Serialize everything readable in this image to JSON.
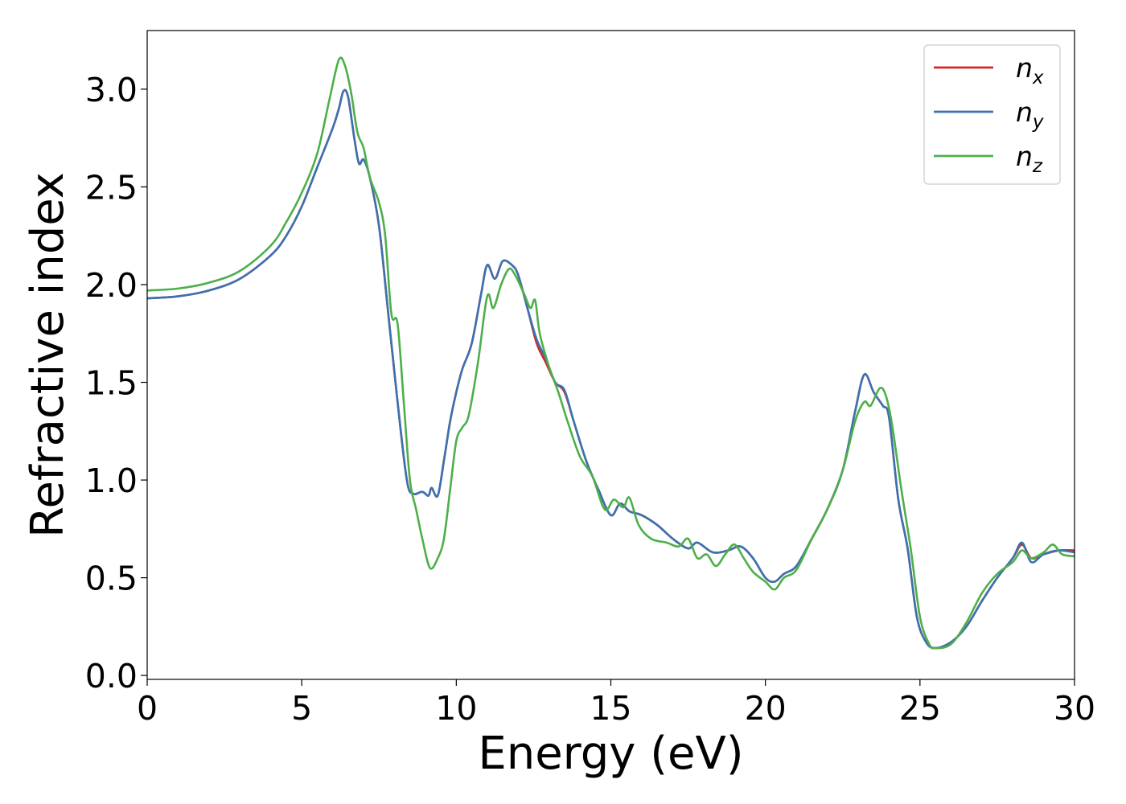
{
  "chart_data": {
    "type": "line",
    "xlabel": "Energy (eV)",
    "ylabel": "Refractive index",
    "xlim": [
      0,
      30
    ],
    "ylim": [
      -0.02,
      3.3
    ],
    "xticks": [
      "0",
      "5",
      "10",
      "15",
      "20",
      "25",
      "30"
    ],
    "yticks": [
      "0.0",
      "0.5",
      "1.0",
      "1.5",
      "2.0",
      "2.5",
      "3.0"
    ],
    "grid": false,
    "legend_position": "top-right",
    "series": [
      {
        "name": "n",
        "subscript": "x",
        "color": "#d62728",
        "points": [
          [
            0,
            1.93
          ],
          [
            1,
            1.94
          ],
          [
            2,
            1.97
          ],
          [
            3,
            2.03
          ],
          [
            4,
            2.15
          ],
          [
            4.5,
            2.25
          ],
          [
            5,
            2.4
          ],
          [
            5.5,
            2.6
          ],
          [
            6,
            2.8
          ],
          [
            6.2,
            2.9
          ],
          [
            6.35,
            2.99
          ],
          [
            6.5,
            2.96
          ],
          [
            6.7,
            2.75
          ],
          [
            6.85,
            2.62
          ],
          [
            7.0,
            2.64
          ],
          [
            7.2,
            2.55
          ],
          [
            7.5,
            2.3
          ],
          [
            7.8,
            1.85
          ],
          [
            8.1,
            1.4
          ],
          [
            8.4,
            1.0
          ],
          [
            8.6,
            0.93
          ],
          [
            8.9,
            0.94
          ],
          [
            9.1,
            0.92
          ],
          [
            9.2,
            0.96
          ],
          [
            9.4,
            0.92
          ],
          [
            9.6,
            1.1
          ],
          [
            9.8,
            1.3
          ],
          [
            10.0,
            1.45
          ],
          [
            10.2,
            1.57
          ],
          [
            10.5,
            1.7
          ],
          [
            10.8,
            1.95
          ],
          [
            11.0,
            2.1
          ],
          [
            11.25,
            2.03
          ],
          [
            11.5,
            2.12
          ],
          [
            11.8,
            2.1
          ],
          [
            12.0,
            2.05
          ],
          [
            12.3,
            1.88
          ],
          [
            12.6,
            1.7
          ],
          [
            12.9,
            1.6
          ],
          [
            13.2,
            1.5
          ],
          [
            13.5,
            1.45
          ],
          [
            13.8,
            1.3
          ],
          [
            14.2,
            1.1
          ],
          [
            14.6,
            0.95
          ],
          [
            15.0,
            0.82
          ],
          [
            15.3,
            0.88
          ],
          [
            15.6,
            0.84
          ],
          [
            16.0,
            0.82
          ],
          [
            16.5,
            0.77
          ],
          [
            17.0,
            0.7
          ],
          [
            17.5,
            0.65
          ],
          [
            17.8,
            0.68
          ],
          [
            18.3,
            0.63
          ],
          [
            18.8,
            0.64
          ],
          [
            19.2,
            0.66
          ],
          [
            19.6,
            0.6
          ],
          [
            20.0,
            0.5
          ],
          [
            20.3,
            0.48
          ],
          [
            20.6,
            0.52
          ],
          [
            21.0,
            0.56
          ],
          [
            21.5,
            0.7
          ],
          [
            22.0,
            0.85
          ],
          [
            22.5,
            1.05
          ],
          [
            22.9,
            1.35
          ],
          [
            23.2,
            1.54
          ],
          [
            23.5,
            1.45
          ],
          [
            23.8,
            1.38
          ],
          [
            24.0,
            1.32
          ],
          [
            24.3,
            0.9
          ],
          [
            24.6,
            0.65
          ],
          [
            24.9,
            0.3
          ],
          [
            25.2,
            0.17
          ],
          [
            25.5,
            0.14
          ],
          [
            26.0,
            0.17
          ],
          [
            26.5,
            0.25
          ],
          [
            27.0,
            0.38
          ],
          [
            27.5,
            0.5
          ],
          [
            28.0,
            0.6
          ],
          [
            28.3,
            0.67
          ],
          [
            28.6,
            0.6
          ],
          [
            29.0,
            0.62
          ],
          [
            29.5,
            0.64
          ],
          [
            30,
            0.64
          ]
        ]
      },
      {
        "name": "n",
        "subscript": "y",
        "color": "#3a72b0",
        "points": [
          [
            0,
            1.93
          ],
          [
            1,
            1.94
          ],
          [
            2,
            1.97
          ],
          [
            3,
            2.03
          ],
          [
            4,
            2.15
          ],
          [
            4.5,
            2.25
          ],
          [
            5,
            2.4
          ],
          [
            5.5,
            2.6
          ],
          [
            6,
            2.8
          ],
          [
            6.2,
            2.9
          ],
          [
            6.35,
            2.99
          ],
          [
            6.5,
            2.96
          ],
          [
            6.7,
            2.75
          ],
          [
            6.85,
            2.62
          ],
          [
            7.0,
            2.64
          ],
          [
            7.2,
            2.55
          ],
          [
            7.5,
            2.3
          ],
          [
            7.8,
            1.85
          ],
          [
            8.1,
            1.4
          ],
          [
            8.4,
            1.0
          ],
          [
            8.6,
            0.93
          ],
          [
            8.9,
            0.94
          ],
          [
            9.1,
            0.92
          ],
          [
            9.2,
            0.96
          ],
          [
            9.4,
            0.92
          ],
          [
            9.6,
            1.1
          ],
          [
            9.8,
            1.3
          ],
          [
            10.0,
            1.45
          ],
          [
            10.2,
            1.57
          ],
          [
            10.5,
            1.7
          ],
          [
            10.8,
            1.95
          ],
          [
            11.0,
            2.1
          ],
          [
            11.25,
            2.03
          ],
          [
            11.5,
            2.12
          ],
          [
            11.8,
            2.1
          ],
          [
            12.0,
            2.05
          ],
          [
            12.3,
            1.88
          ],
          [
            12.6,
            1.72
          ],
          [
            12.9,
            1.62
          ],
          [
            13.2,
            1.5
          ],
          [
            13.5,
            1.46
          ],
          [
            13.8,
            1.3
          ],
          [
            14.2,
            1.1
          ],
          [
            14.6,
            0.95
          ],
          [
            15.0,
            0.82
          ],
          [
            15.3,
            0.88
          ],
          [
            15.6,
            0.84
          ],
          [
            16.0,
            0.82
          ],
          [
            16.5,
            0.77
          ],
          [
            17.0,
            0.7
          ],
          [
            17.5,
            0.65
          ],
          [
            17.8,
            0.68
          ],
          [
            18.3,
            0.63
          ],
          [
            18.8,
            0.64
          ],
          [
            19.2,
            0.66
          ],
          [
            19.6,
            0.6
          ],
          [
            20.0,
            0.5
          ],
          [
            20.3,
            0.48
          ],
          [
            20.6,
            0.52
          ],
          [
            21.0,
            0.56
          ],
          [
            21.5,
            0.7
          ],
          [
            22.0,
            0.85
          ],
          [
            22.5,
            1.05
          ],
          [
            22.9,
            1.35
          ],
          [
            23.2,
            1.54
          ],
          [
            23.5,
            1.45
          ],
          [
            23.8,
            1.38
          ],
          [
            24.0,
            1.32
          ],
          [
            24.3,
            0.9
          ],
          [
            24.6,
            0.65
          ],
          [
            24.9,
            0.3
          ],
          [
            25.2,
            0.17
          ],
          [
            25.5,
            0.14
          ],
          [
            26.0,
            0.17
          ],
          [
            26.5,
            0.25
          ],
          [
            27.0,
            0.38
          ],
          [
            27.5,
            0.5
          ],
          [
            28.0,
            0.6
          ],
          [
            28.3,
            0.68
          ],
          [
            28.6,
            0.58
          ],
          [
            29.0,
            0.62
          ],
          [
            29.5,
            0.64
          ],
          [
            30,
            0.63
          ]
        ]
      },
      {
        "name": "n",
        "subscript": "z",
        "color": "#4daf4a",
        "points": [
          [
            0,
            1.97
          ],
          [
            1,
            1.98
          ],
          [
            2,
            2.01
          ],
          [
            3,
            2.07
          ],
          [
            4,
            2.2
          ],
          [
            4.5,
            2.32
          ],
          [
            5,
            2.47
          ],
          [
            5.5,
            2.67
          ],
          [
            5.9,
            2.95
          ],
          [
            6.2,
            3.15
          ],
          [
            6.4,
            3.12
          ],
          [
            6.6,
            2.98
          ],
          [
            6.8,
            2.78
          ],
          [
            7.0,
            2.7
          ],
          [
            7.2,
            2.55
          ],
          [
            7.5,
            2.42
          ],
          [
            7.7,
            2.25
          ],
          [
            7.9,
            1.85
          ],
          [
            8.1,
            1.8
          ],
          [
            8.3,
            1.4
          ],
          [
            8.5,
            1.0
          ],
          [
            8.7,
            0.85
          ],
          [
            8.9,
            0.7
          ],
          [
            9.15,
            0.55
          ],
          [
            9.4,
            0.6
          ],
          [
            9.6,
            0.7
          ],
          [
            9.8,
            0.95
          ],
          [
            10.0,
            1.2
          ],
          [
            10.2,
            1.27
          ],
          [
            10.4,
            1.33
          ],
          [
            10.7,
            1.6
          ],
          [
            11.0,
            1.94
          ],
          [
            11.2,
            1.88
          ],
          [
            11.45,
            2.0
          ],
          [
            11.7,
            2.08
          ],
          [
            11.9,
            2.05
          ],
          [
            12.2,
            1.95
          ],
          [
            12.4,
            1.88
          ],
          [
            12.55,
            1.92
          ],
          [
            12.7,
            1.75
          ],
          [
            13.0,
            1.58
          ],
          [
            13.3,
            1.45
          ],
          [
            13.6,
            1.3
          ],
          [
            14.0,
            1.12
          ],
          [
            14.4,
            1.02
          ],
          [
            14.8,
            0.85
          ],
          [
            15.1,
            0.9
          ],
          [
            15.4,
            0.86
          ],
          [
            15.6,
            0.91
          ],
          [
            15.9,
            0.77
          ],
          [
            16.3,
            0.7
          ],
          [
            16.8,
            0.68
          ],
          [
            17.2,
            0.66
          ],
          [
            17.5,
            0.7
          ],
          [
            17.8,
            0.6
          ],
          [
            18.1,
            0.62
          ],
          [
            18.4,
            0.56
          ],
          [
            18.7,
            0.62
          ],
          [
            19.0,
            0.67
          ],
          [
            19.3,
            0.6
          ],
          [
            19.6,
            0.53
          ],
          [
            20.0,
            0.48
          ],
          [
            20.3,
            0.44
          ],
          [
            20.6,
            0.5
          ],
          [
            21.0,
            0.54
          ],
          [
            21.5,
            0.7
          ],
          [
            22.0,
            0.85
          ],
          [
            22.5,
            1.05
          ],
          [
            22.9,
            1.3
          ],
          [
            23.2,
            1.4
          ],
          [
            23.4,
            1.38
          ],
          [
            23.7,
            1.47
          ],
          [
            23.9,
            1.43
          ],
          [
            24.1,
            1.28
          ],
          [
            24.4,
            0.95
          ],
          [
            24.7,
            0.65
          ],
          [
            25.0,
            0.3
          ],
          [
            25.3,
            0.16
          ],
          [
            25.5,
            0.14
          ],
          [
            26.0,
            0.16
          ],
          [
            26.5,
            0.27
          ],
          [
            27.0,
            0.42
          ],
          [
            27.5,
            0.52
          ],
          [
            28.0,
            0.58
          ],
          [
            28.3,
            0.64
          ],
          [
            28.6,
            0.6
          ],
          [
            29.0,
            0.63
          ],
          [
            29.3,
            0.67
          ],
          [
            29.6,
            0.62
          ],
          [
            30,
            0.61
          ]
        ]
      }
    ]
  }
}
